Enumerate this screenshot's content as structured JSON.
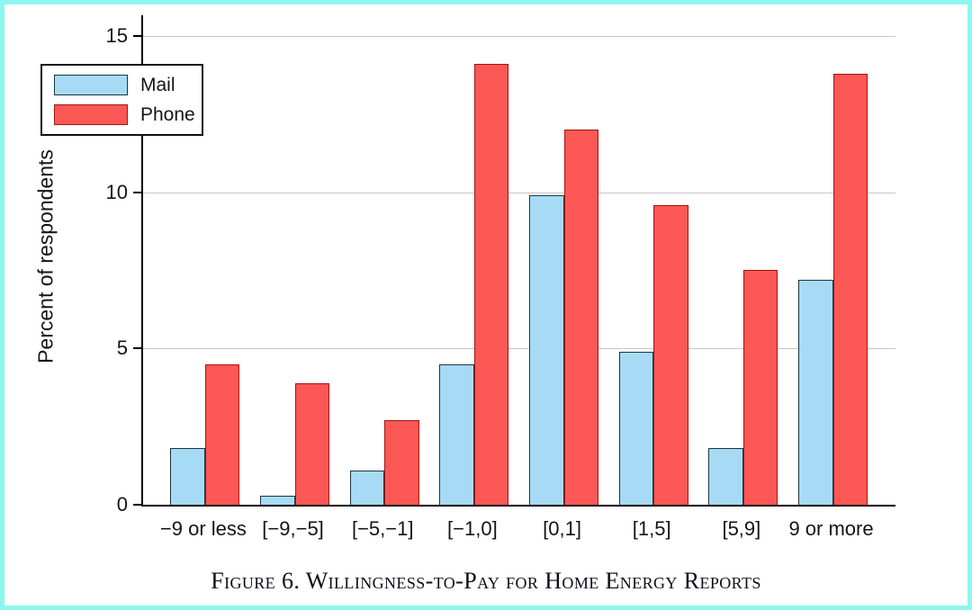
{
  "figure": {
    "caption": "Figure 6. Willingness-to-Pay for Home Energy Reports"
  },
  "chart_data": {
    "type": "bar",
    "title": "",
    "xlabel": "",
    "ylabel": "Percent of respondents",
    "categories": [
      "−9 or less",
      "[−9,−5]",
      "[−5,−1]",
      "[−1,0]",
      "[0,1]",
      "[1,5]",
      "[5,9]",
      "9 or more"
    ],
    "series": [
      {
        "name": "Mail",
        "values": [
          1.8,
          0.3,
          1.1,
          4.5,
          9.9,
          4.9,
          1.8,
          7.2
        ],
        "fill": "#A7DBF5",
        "stroke": "#1B3440"
      },
      {
        "name": "Phone",
        "values": [
          4.5,
          3.9,
          2.7,
          14.1,
          12.0,
          9.6,
          7.5,
          13.8
        ],
        "fill": "#FB5755",
        "stroke": "#A31410"
      }
    ],
    "ylim": [
      0,
      15
    ],
    "yticks": [
      0,
      5,
      10,
      15
    ],
    "grid": true,
    "legend_position": "upper-left"
  },
  "colors": {
    "frame_border": "#8DF6EE",
    "gridline": "#C6C6C6",
    "axis": "#000000",
    "text": "#141414"
  }
}
